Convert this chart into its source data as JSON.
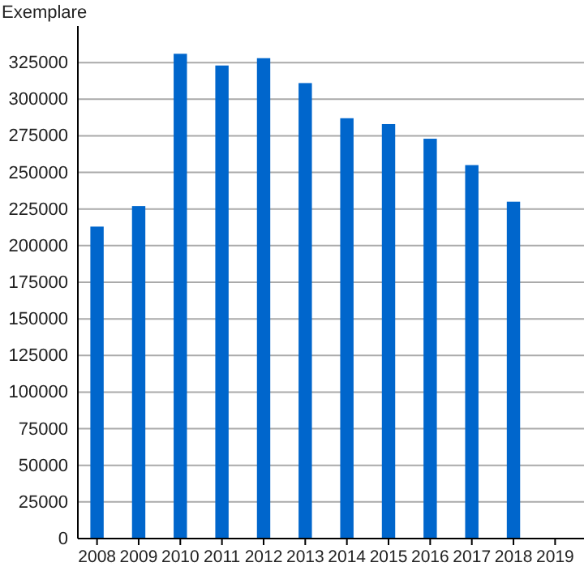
{
  "chart_data": {
    "type": "bar",
    "ylabel": "Exemplare",
    "categories": [
      "2008",
      "2009",
      "2010",
      "2011",
      "2012",
      "2013",
      "2014",
      "2015",
      "2016",
      "2017",
      "2018",
      "2019"
    ],
    "values": [
      213000,
      227000,
      331000,
      323000,
      328000,
      311000,
      287000,
      283000,
      273000,
      255000,
      230000,
      null
    ],
    "color": "#0066cc",
    "ylim": [
      0,
      350000
    ],
    "yticks": [
      0,
      25000,
      50000,
      75000,
      100000,
      125000,
      150000,
      175000,
      200000,
      225000,
      250000,
      275000,
      300000,
      325000
    ],
    "grid": "y"
  }
}
